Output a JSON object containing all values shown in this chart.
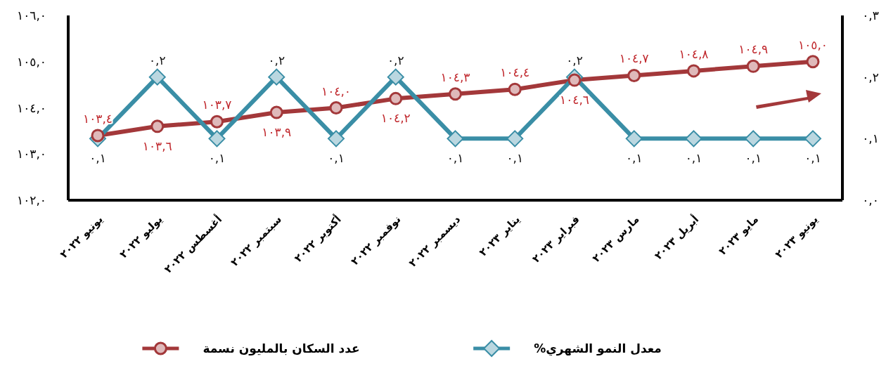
{
  "chart_data": {
    "type": "line",
    "categories": [
      "يونيو ٢٠٢٢",
      "يوليو ٢٠٢٢",
      "أغسطس ٢٠٢٢",
      "سبتمبر ٢٠٢٢",
      "أكتوبر ٢٠٢٢",
      "نوفمبر ٢٠٢٢",
      "ديسمبر ٢٠٢٢",
      "يناير ٢٠٢٣",
      "فبراير ٢٠٢٣",
      "مارس ٢٠٢٣",
      "أبريل ٢٠٢٣",
      "مايو ٢٠٢٣",
      "يونيو ٢٠٢٣"
    ],
    "series": [
      {
        "name": "عدد السكان بالمليون نسمة",
        "color": "#a3383a",
        "marker": "circle",
        "values": [
          103.4,
          103.6,
          103.7,
          103.9,
          104.0,
          104.2,
          104.3,
          104.4,
          104.6,
          104.7,
          104.8,
          104.9,
          105.0
        ],
        "value_labels": [
          "١٠٣,٤",
          "١٠٣,٦",
          "١٠٣,٧",
          "١٠٣,٩",
          "١٠٤,٠",
          "١٠٤,٢",
          "١٠٤,٣",
          "١٠٤,٤",
          "١٠٤,٦",
          "١٠٤,٧",
          "١٠٤,٨",
          "١٠٤,٩",
          "١٠٥,٠"
        ]
      },
      {
        "name": "معدل النمو الشهري%",
        "color": "#3a8ea6",
        "marker": "diamond",
        "axis": "y2",
        "values": [
          0.1,
          0.2,
          0.1,
          0.2,
          0.1,
          0.2,
          0.1,
          0.1,
          0.2,
          0.1,
          0.1,
          0.1,
          0.1
        ],
        "value_labels": [
          "٠,١",
          "٠,٢",
          "٠,١",
          "٠,٢",
          "٠,١",
          "٠,٢",
          "٠,١",
          "٠,١",
          "٠,٢",
          "٠,١",
          "٠,١",
          "٠,١",
          "٠,١"
        ]
      }
    ],
    "ylim": [
      102,
      106
    ],
    "yticks": [
      {
        "value": 102,
        "label": "١٠٢,٠"
      },
      {
        "value": 103,
        "label": "١٠٣,٠"
      },
      {
        "value": 104,
        "label": "١٠٤,٠"
      },
      {
        "value": 105,
        "label": "١٠٥,٠"
      },
      {
        "value": 106,
        "label": "١٠٦,٠"
      }
    ],
    "y2lim": [
      0,
      0.3
    ],
    "y2ticks": [
      {
        "value": 0,
        "label": "٠,٠"
      },
      {
        "value": 0.1,
        "label": "٠,١"
      },
      {
        "value": 0.2,
        "label": "٠,٢"
      },
      {
        "value": 0.3,
        "label": "٠,٣"
      }
    ],
    "grid": false,
    "legend": "bottom",
    "line_style": "solid"
  }
}
